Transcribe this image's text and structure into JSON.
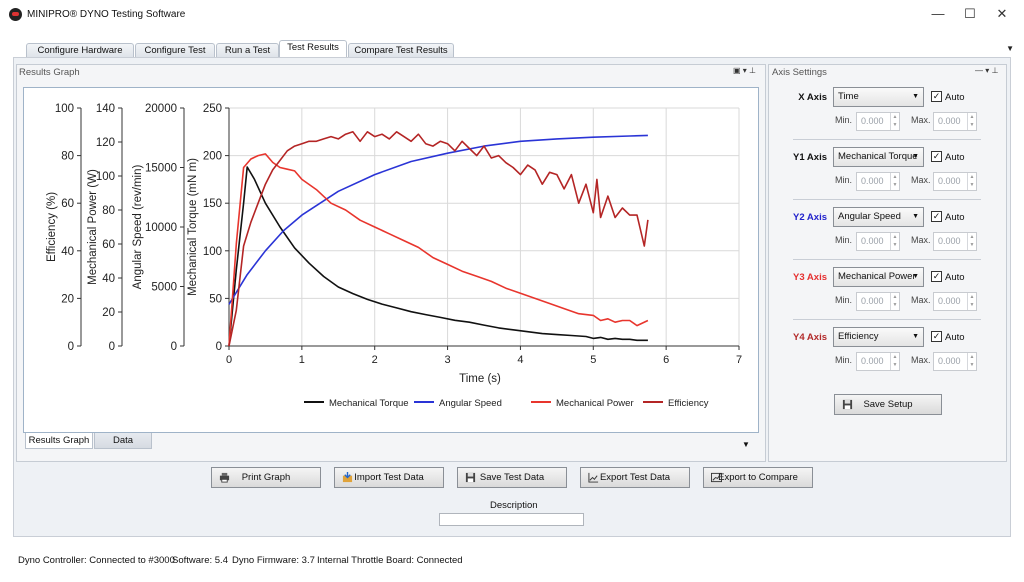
{
  "window": {
    "title": "MINIPRO® DYNO Testing Software",
    "minimize": "—",
    "maximize": "☐",
    "close": "✕"
  },
  "tabs": [
    {
      "label": "Configure Hardware"
    },
    {
      "label": "Configure Test"
    },
    {
      "label": "Run a Test"
    },
    {
      "label": "Test Results",
      "active": true
    },
    {
      "label": "Compare Test Results"
    }
  ],
  "results_panel": {
    "title": "Results Graph",
    "icons": "▣ ▾ ⊥"
  },
  "bottom_tabs": [
    {
      "label": "Results Graph",
      "active": true
    },
    {
      "label": "Data"
    }
  ],
  "axis_panel": {
    "title": "Axis Settings",
    "icons": "— ▾ ⊥",
    "rows": [
      {
        "label": "X Axis",
        "color": "#111111",
        "value": "Time",
        "auto": "Auto",
        "min_label": "Min.",
        "max_label": "Max.",
        "min": "0.000",
        "max": "0.000"
      },
      {
        "label": "Y1 Axis",
        "color": "#111111",
        "value": "Mechanical Torque",
        "auto": "Auto",
        "min_label": "Min.",
        "max_label": "Max.",
        "min": "0.000",
        "max": "0.000"
      },
      {
        "label": "Y2 Axis",
        "color": "#2222cc",
        "value": "Angular Speed",
        "auto": "Auto",
        "min_label": "Min.",
        "max_label": "Max.",
        "min": "0.000",
        "max": "0.000"
      },
      {
        "label": "Y3 Axis",
        "color": "#e53030",
        "value": "Mechanical Power",
        "auto": "Auto",
        "min_label": "Min.",
        "max_label": "Max.",
        "min": "0.000",
        "max": "0.000"
      },
      {
        "label": "Y4 Axis",
        "color": "#b22a2a",
        "value": "Efficiency",
        "auto": "Auto",
        "min_label": "Min.",
        "max_label": "Max.",
        "min": "0.000",
        "max": "0.000"
      }
    ],
    "save_label": "Save Setup"
  },
  "actions": {
    "print": "Print Graph",
    "import": "Import Test Data",
    "save": "Save Test Data",
    "export": "Export Test Data",
    "export_compare": "Export to Compare"
  },
  "description": {
    "label": "Description",
    "value": ""
  },
  "status": {
    "controller": "Dyno Controller: Connected to #3000",
    "software": "Software: 5.4",
    "firmware": "Dyno Firmware: 3.7",
    "throttle": "Internal Throttle Board: Connected"
  },
  "chart_data": {
    "type": "line",
    "xlabel": "Time (s)",
    "x_ticks": [
      "0",
      "1",
      "2",
      "3",
      "4",
      "5",
      "6",
      "7"
    ],
    "xlim": [
      0,
      7
    ],
    "grid": true,
    "legend_position": "bottom",
    "axes": [
      {
        "id": "y1",
        "label": "Mechanical Torque (mN m)",
        "lim": [
          0,
          250
        ],
        "ticks": [
          "0",
          "50",
          "100",
          "150",
          "200",
          "250"
        ]
      },
      {
        "id": "y2",
        "label": "Angular Speed (rev/min)",
        "lim": [
          0,
          20000
        ],
        "ticks": [
          "0",
          "5000",
          "10000",
          "15000",
          "20000"
        ]
      },
      {
        "id": "y3",
        "label": "Mechanical Power (W)",
        "lim": [
          0,
          140
        ],
        "ticks": [
          "0",
          "20",
          "40",
          "60",
          "80",
          "100",
          "120",
          "140"
        ]
      },
      {
        "id": "y4",
        "label": "Efficiency (%)",
        "lim": [
          0,
          100
        ],
        "ticks": [
          "0",
          "20",
          "40",
          "60",
          "80",
          "100"
        ]
      }
    ],
    "series": [
      {
        "name": "Mechanical Torque",
        "axis": "y1",
        "color": "#111111",
        "x": [
          0,
          0.1,
          0.2,
          0.25,
          0.35,
          0.5,
          0.7,
          0.9,
          1.1,
          1.3,
          1.5,
          1.7,
          1.9,
          2.1,
          2.3,
          2.5,
          2.7,
          2.9,
          3.1,
          3.3,
          3.5,
          3.7,
          3.9,
          4.1,
          4.3,
          4.5,
          4.7,
          4.9,
          5.0,
          5.1,
          5.2,
          5.3,
          5.4,
          5.5,
          5.6,
          5.75
        ],
        "y": [
          0,
          80,
          150,
          188,
          175,
          150,
          125,
          103,
          87,
          73,
          62,
          55,
          49,
          44,
          40,
          36,
          33,
          30,
          27,
          25,
          22,
          19,
          17,
          15,
          13,
          12,
          11,
          10,
          8,
          9,
          7,
          8,
          7,
          7,
          6,
          6
        ]
      },
      {
        "name": "Angular Speed",
        "axis": "y2",
        "color": "#2a34d6",
        "x": [
          0,
          0.25,
          0.5,
          0.75,
          1.0,
          1.5,
          2.0,
          2.5,
          3.0,
          3.5,
          4.0,
          4.5,
          5.0,
          5.5,
          5.75
        ],
        "y": [
          3500,
          6000,
          8000,
          9700,
          11000,
          13000,
          14400,
          15500,
          16200,
          16800,
          17200,
          17400,
          17550,
          17650,
          17700
        ]
      },
      {
        "name": "Mechanical Power",
        "axis": "y3",
        "color": "#e8352d",
        "x": [
          0,
          0.1,
          0.2,
          0.3,
          0.4,
          0.5,
          0.6,
          0.7,
          0.8,
          0.9,
          1.0,
          1.2,
          1.4,
          1.6,
          1.8,
          2.0,
          2.2,
          2.4,
          2.6,
          2.8,
          3.0,
          3.2,
          3.4,
          3.6,
          3.8,
          4.0,
          4.2,
          4.4,
          4.6,
          4.8,
          5.0,
          5.1,
          5.2,
          5.3,
          5.4,
          5.5,
          5.6,
          5.75
        ],
        "y": [
          0,
          60,
          105,
          110,
          112,
          113,
          108,
          105,
          104,
          103,
          98,
          92,
          84,
          80,
          74,
          70,
          66,
          62,
          58,
          52,
          48,
          44,
          41,
          38,
          34,
          31,
          28,
          25,
          22,
          19,
          18,
          15,
          16,
          14,
          15,
          15,
          12,
          15
        ]
      },
      {
        "name": "Efficiency",
        "axis": "y4",
        "color": "#b42525",
        "x": [
          0,
          0.1,
          0.2,
          0.3,
          0.4,
          0.5,
          0.6,
          0.7,
          0.8,
          0.9,
          1.0,
          1.1,
          1.2,
          1.3,
          1.4,
          1.5,
          1.6,
          1.7,
          1.8,
          1.9,
          2.0,
          2.1,
          2.2,
          2.3,
          2.4,
          2.5,
          2.6,
          2.7,
          2.8,
          2.9,
          3.0,
          3.1,
          3.2,
          3.3,
          3.4,
          3.5,
          3.6,
          3.7,
          3.8,
          3.9,
          4.0,
          4.1,
          4.2,
          4.3,
          4.4,
          4.5,
          4.6,
          4.7,
          4.8,
          4.9,
          5.0,
          5.05,
          5.1,
          5.2,
          5.3,
          5.4,
          5.5,
          5.6,
          5.7,
          5.75
        ],
        "y": [
          0,
          15,
          42,
          52,
          60,
          68,
          74,
          78,
          82,
          84,
          85,
          86,
          86,
          87,
          88,
          87,
          89,
          90,
          86,
          90,
          88,
          89,
          87,
          90,
          88,
          86,
          89,
          85,
          84,
          86,
          85,
          82,
          86,
          83,
          80,
          84,
          79,
          80,
          77,
          75,
          72,
          76,
          74,
          68,
          73,
          72,
          66,
          72,
          60,
          68,
          56,
          70,
          54,
          63,
          54,
          58,
          55,
          55,
          42,
          53
        ]
      }
    ]
  }
}
